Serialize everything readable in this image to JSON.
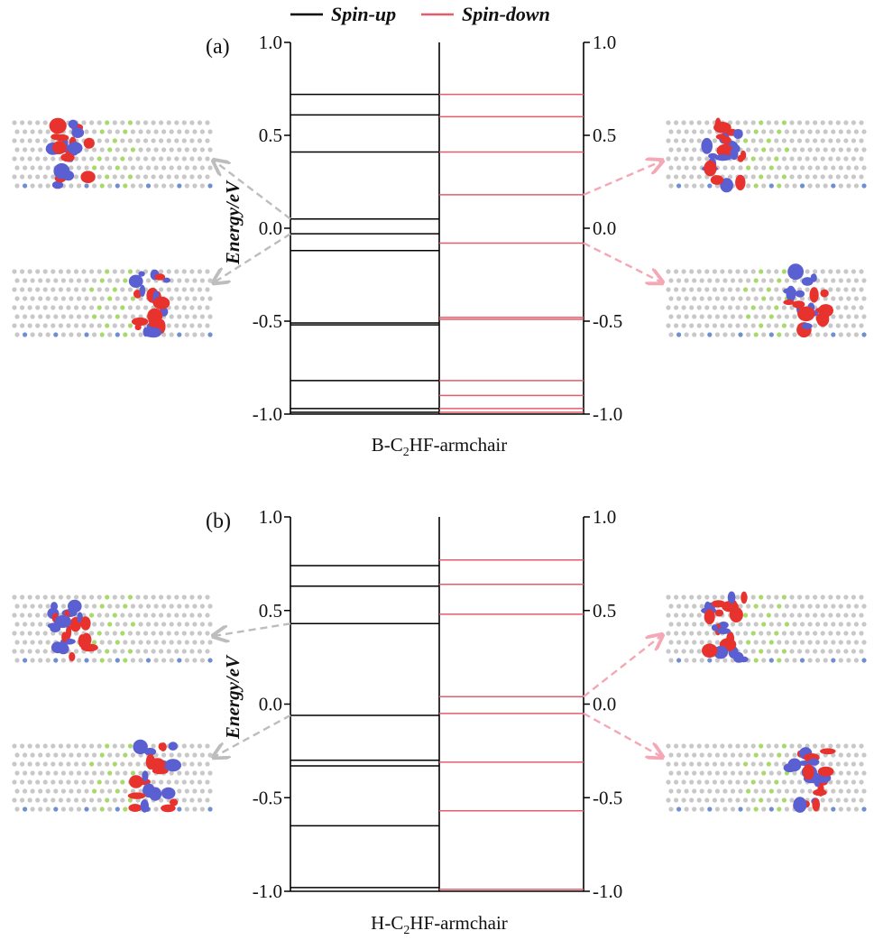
{
  "legend": {
    "spin_up_label": "Spin-up",
    "spin_down_label": "Spin-down",
    "spin_up_color": "#000000",
    "spin_down_color": "#e35d6a"
  },
  "arrow_colors": {
    "spin_up": "#bdbdbd",
    "spin_down": "#f4a7b4"
  },
  "orbital_colors": {
    "positive": "#e8322e",
    "negative": "#5a5fd1",
    "atom": "#c8c8c8",
    "fluorine": "#a8d96b",
    "boron": "#6f8fd1"
  },
  "chart_data": [
    {
      "type": "energy-level diagram",
      "panel_label": "(a)",
      "caption_prefix": "B-C",
      "caption_sub": "2",
      "caption_suffix": "HF-armchair",
      "ylabel": "Energy/eV",
      "ylim": [
        -1.0,
        1.0
      ],
      "yticks": [
        "1.0",
        "0.5",
        "0.0",
        "-0.5",
        "-1.0"
      ],
      "series": [
        {
          "name": "Spin-up",
          "levels": [
            0.72,
            0.61,
            0.41,
            0.05,
            -0.03,
            -0.12,
            -0.51,
            -0.52,
            -0.82,
            -0.97,
            -0.99
          ]
        },
        {
          "name": "Spin-down",
          "levels": [
            0.72,
            0.6,
            0.41,
            0.18,
            -0.08,
            -0.48,
            -0.49,
            -0.82,
            -0.9,
            -0.97,
            -0.99
          ]
        }
      ],
      "orbital_arrows": [
        {
          "spin": "up",
          "level": 0.05,
          "side": "left",
          "target": "upper"
        },
        {
          "spin": "up",
          "level": -0.03,
          "side": "left",
          "target": "lower"
        },
        {
          "spin": "down",
          "level": 0.18,
          "side": "right",
          "target": "upper"
        },
        {
          "spin": "down",
          "level": -0.08,
          "side": "right",
          "target": "lower"
        }
      ]
    },
    {
      "type": "energy-level diagram",
      "panel_label": "(b)",
      "caption_prefix": "H-C",
      "caption_sub": "2",
      "caption_suffix": "HF-armchair",
      "ylabel": "Energy/eV",
      "ylim": [
        -1.0,
        1.0
      ],
      "yticks": [
        "1.0",
        "0.5",
        "0.0",
        "-0.5",
        "-1.0"
      ],
      "series": [
        {
          "name": "Spin-up",
          "levels": [
            0.74,
            0.63,
            0.43,
            -0.06,
            -0.3,
            -0.33,
            -0.65,
            -0.98
          ]
        },
        {
          "name": "Spin-down",
          "levels": [
            0.77,
            0.64,
            0.48,
            0.04,
            -0.05,
            -0.31,
            -0.57,
            -0.99
          ]
        }
      ],
      "orbital_arrows": [
        {
          "spin": "up",
          "level": 0.43,
          "side": "left",
          "target": "upper"
        },
        {
          "spin": "up",
          "level": -0.06,
          "side": "left",
          "target": "lower"
        },
        {
          "spin": "down",
          "level": 0.04,
          "side": "right",
          "target": "upper"
        },
        {
          "spin": "down",
          "level": -0.05,
          "side": "right",
          "target": "lower"
        }
      ]
    }
  ]
}
